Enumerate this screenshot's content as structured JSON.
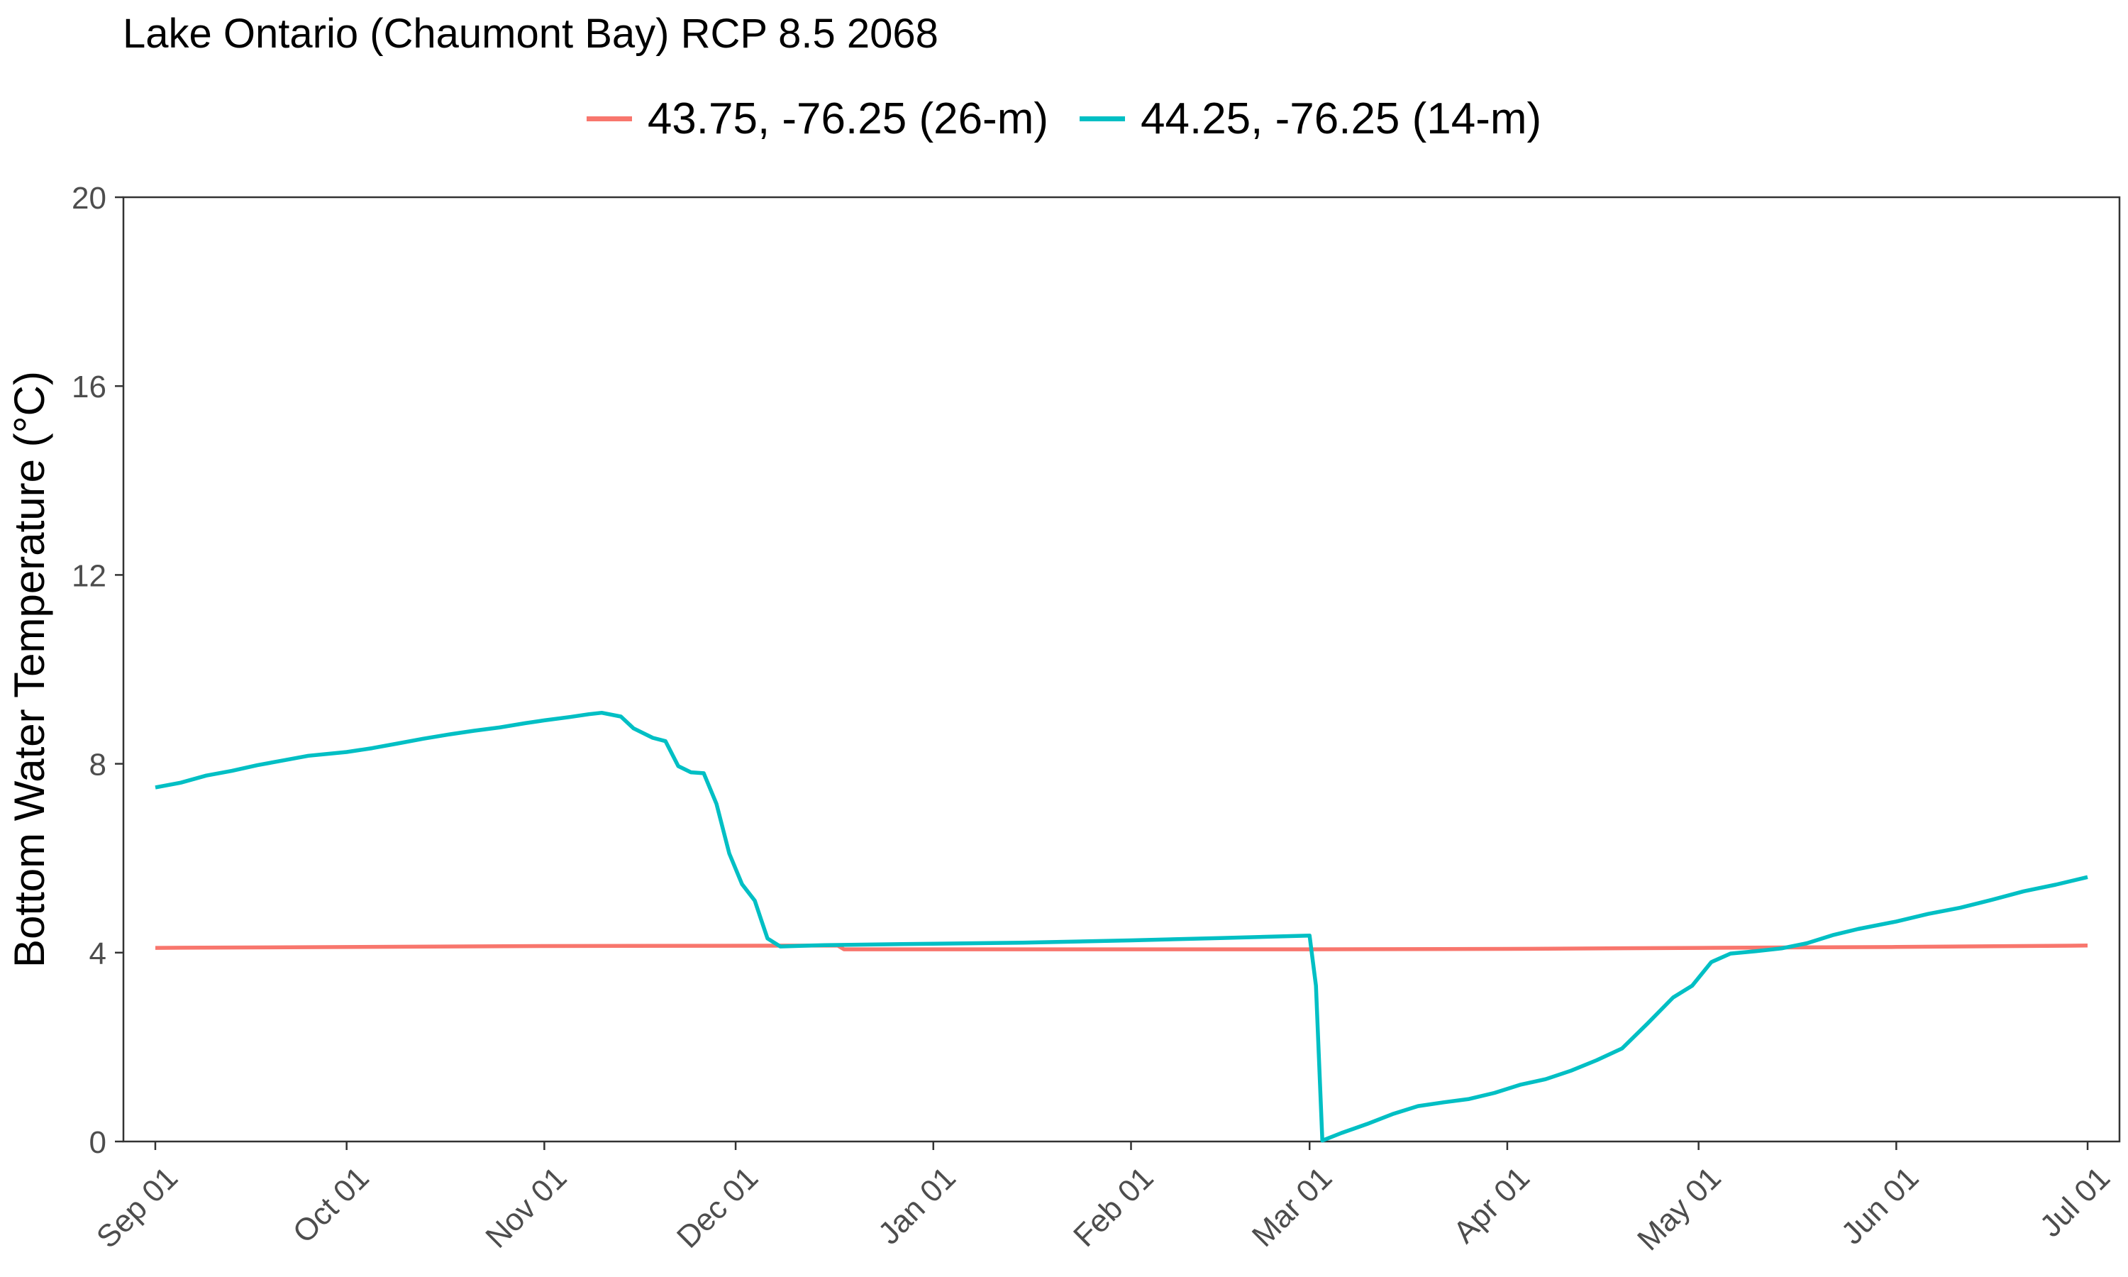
{
  "chart_data": {
    "type": "line",
    "title": "Lake Ontario (Chaumont Bay) RCP 8.5 2068",
    "xlabel": "",
    "ylabel": "Bottom Water Temperature (°C)",
    "ylim": [
      0,
      20
    ],
    "yticks": [
      "0",
      "4",
      "8",
      "12",
      "16",
      "20"
    ],
    "xlim": [
      "2068-08-27",
      "2069-07-06"
    ],
    "xticks": [
      {
        "date": "2068-09-01",
        "label": "Sep 01"
      },
      {
        "date": "2068-10-01",
        "label": "Oct 01"
      },
      {
        "date": "2068-11-01",
        "label": "Nov 01"
      },
      {
        "date": "2068-12-01",
        "label": "Dec 01"
      },
      {
        "date": "2069-01-01",
        "label": "Jan 01"
      },
      {
        "date": "2069-02-01",
        "label": "Feb 01"
      },
      {
        "date": "2069-03-01",
        "label": "Mar 01"
      },
      {
        "date": "2069-04-01",
        "label": "Apr 01"
      },
      {
        "date": "2069-05-01",
        "label": "May 01"
      },
      {
        "date": "2069-06-01",
        "label": "Jun 01"
      },
      {
        "date": "2069-07-01",
        "label": "Jul 01"
      }
    ],
    "grid": false,
    "legend_position": "top",
    "series": [
      {
        "name": "43.75, -76.25 (26-m)",
        "color": "#F8766D",
        "points": [
          [
            "2068-09-01",
            4.1
          ],
          [
            "2068-11-01",
            4.14
          ],
          [
            "2068-12-17",
            4.15
          ],
          [
            "2068-12-18",
            4.07
          ],
          [
            "2069-01-01",
            4.07
          ],
          [
            "2069-03-01",
            4.07
          ],
          [
            "2069-04-01",
            4.08
          ],
          [
            "2069-05-01",
            4.1
          ],
          [
            "2069-06-01",
            4.12
          ],
          [
            "2069-07-01",
            4.15
          ]
        ]
      },
      {
        "name": "44.25, -76.25 (14-m)",
        "color": "#00BFC4",
        "points": [
          [
            "2068-09-01",
            7.5
          ],
          [
            "2068-09-05",
            7.6
          ],
          [
            "2068-09-09",
            7.75
          ],
          [
            "2068-09-13",
            7.85
          ],
          [
            "2068-09-17",
            7.97
          ],
          [
            "2068-09-21",
            8.07
          ],
          [
            "2068-09-25",
            8.17
          ],
          [
            "2068-10-01",
            8.25
          ],
          [
            "2068-10-05",
            8.33
          ],
          [
            "2068-10-09",
            8.43
          ],
          [
            "2068-10-13",
            8.53
          ],
          [
            "2068-10-17",
            8.62
          ],
          [
            "2068-10-21",
            8.7
          ],
          [
            "2068-10-25",
            8.77
          ],
          [
            "2068-10-29",
            8.86
          ],
          [
            "2068-11-01",
            8.92
          ],
          [
            "2068-11-05",
            8.99
          ],
          [
            "2068-11-08",
            9.05
          ],
          [
            "2068-11-10",
            9.08
          ],
          [
            "2068-11-13",
            9.0
          ],
          [
            "2068-11-15",
            8.75
          ],
          [
            "2068-11-18",
            8.55
          ],
          [
            "2068-11-20",
            8.48
          ],
          [
            "2068-11-22",
            7.95
          ],
          [
            "2068-11-24",
            7.82
          ],
          [
            "2068-11-26",
            7.8
          ],
          [
            "2068-11-28",
            7.15
          ],
          [
            "2068-11-30",
            6.1
          ],
          [
            "2068-12-02",
            5.45
          ],
          [
            "2068-12-04",
            5.1
          ],
          [
            "2068-12-05",
            4.7
          ],
          [
            "2068-12-06",
            4.3
          ],
          [
            "2068-12-08",
            4.13
          ],
          [
            "2068-12-15",
            4.16
          ],
          [
            "2069-01-01",
            4.19
          ],
          [
            "2069-01-15",
            4.21
          ],
          [
            "2069-02-01",
            4.26
          ],
          [
            "2069-02-15",
            4.31
          ],
          [
            "2069-03-01",
            4.36
          ],
          [
            "2069-03-02",
            3.3
          ],
          [
            "2069-03-03",
            0.02
          ],
          [
            "2069-03-06",
            0.18
          ],
          [
            "2069-03-10",
            0.37
          ],
          [
            "2069-03-14",
            0.58
          ],
          [
            "2069-03-18",
            0.75
          ],
          [
            "2069-03-22",
            0.83
          ],
          [
            "2069-03-26",
            0.9
          ],
          [
            "2069-03-30",
            1.03
          ],
          [
            "2069-04-03",
            1.2
          ],
          [
            "2069-04-07",
            1.32
          ],
          [
            "2069-04-11",
            1.5
          ],
          [
            "2069-04-15",
            1.72
          ],
          [
            "2069-04-19",
            1.97
          ],
          [
            "2069-04-23",
            2.5
          ],
          [
            "2069-04-27",
            3.05
          ],
          [
            "2069-04-30",
            3.3
          ],
          [
            "2069-05-03",
            3.8
          ],
          [
            "2069-05-06",
            3.98
          ],
          [
            "2069-05-10",
            4.03
          ],
          [
            "2069-05-14",
            4.09
          ],
          [
            "2069-05-18",
            4.2
          ],
          [
            "2069-05-22",
            4.37
          ],
          [
            "2069-05-26",
            4.5
          ],
          [
            "2069-06-01",
            4.66
          ],
          [
            "2069-06-06",
            4.82
          ],
          [
            "2069-06-11",
            4.95
          ],
          [
            "2069-06-16",
            5.12
          ],
          [
            "2069-06-21",
            5.3
          ],
          [
            "2069-06-26",
            5.44
          ],
          [
            "2069-07-01",
            5.6
          ]
        ]
      }
    ]
  }
}
